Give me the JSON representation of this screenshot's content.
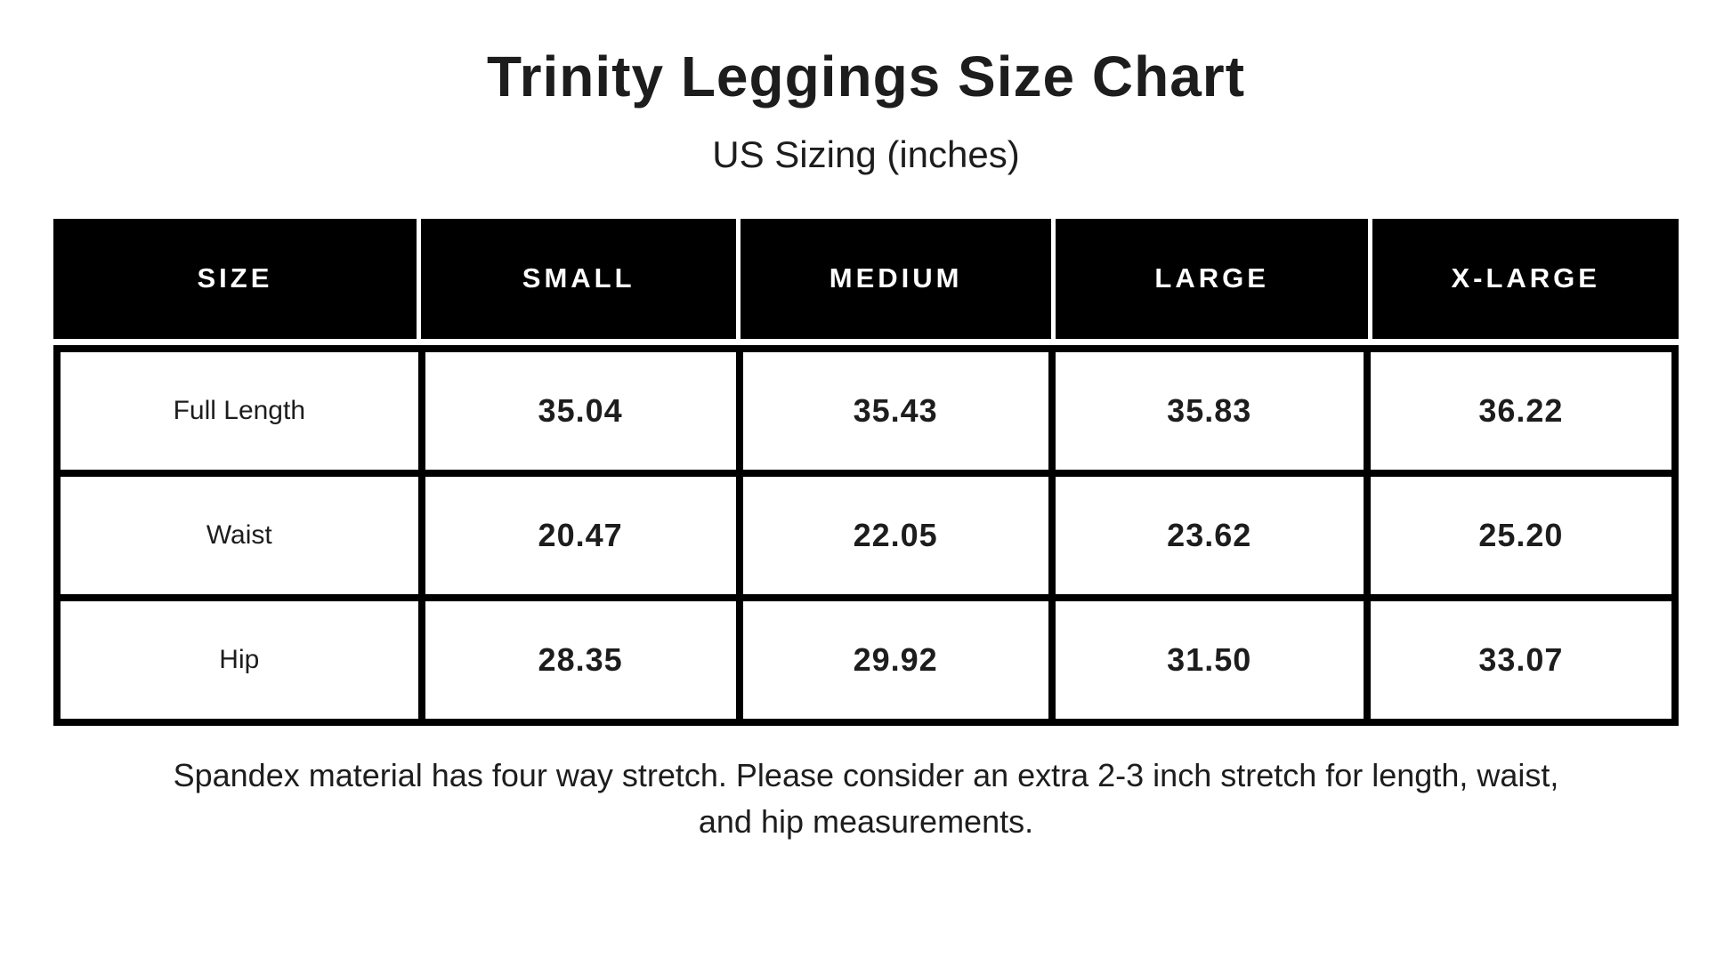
{
  "page": {
    "title": "Trinity Leggings Size Chart",
    "subtitle": "US Sizing (inches)",
    "footnote_lines": [
      "Spandex material has four way stretch. Please consider an extra 2-3 inch stretch for length, waist,",
      "and hip measurements."
    ]
  },
  "chart_data": {
    "type": "table",
    "title": "Trinity Leggings Size Chart",
    "subtitle": "US Sizing (inches)",
    "columns": [
      "SIZE",
      "SMALL",
      "MEDIUM",
      "LARGE",
      "X-LARGE"
    ],
    "rows": [
      {
        "label": "Full Length",
        "values": [
          "35.04",
          "35.43",
          "35.83",
          "36.22"
        ]
      },
      {
        "label": "Waist",
        "values": [
          "20.47",
          "22.05",
          "23.62",
          "25.20"
        ]
      },
      {
        "label": "Hip",
        "values": [
          "28.35",
          "29.92",
          "31.50",
          "33.07"
        ]
      }
    ]
  },
  "colors": {
    "background": "#ffffff",
    "header_bg": "#000000",
    "header_text": "#ffffff",
    "border": "#000000",
    "text": "#1d1d1d"
  }
}
